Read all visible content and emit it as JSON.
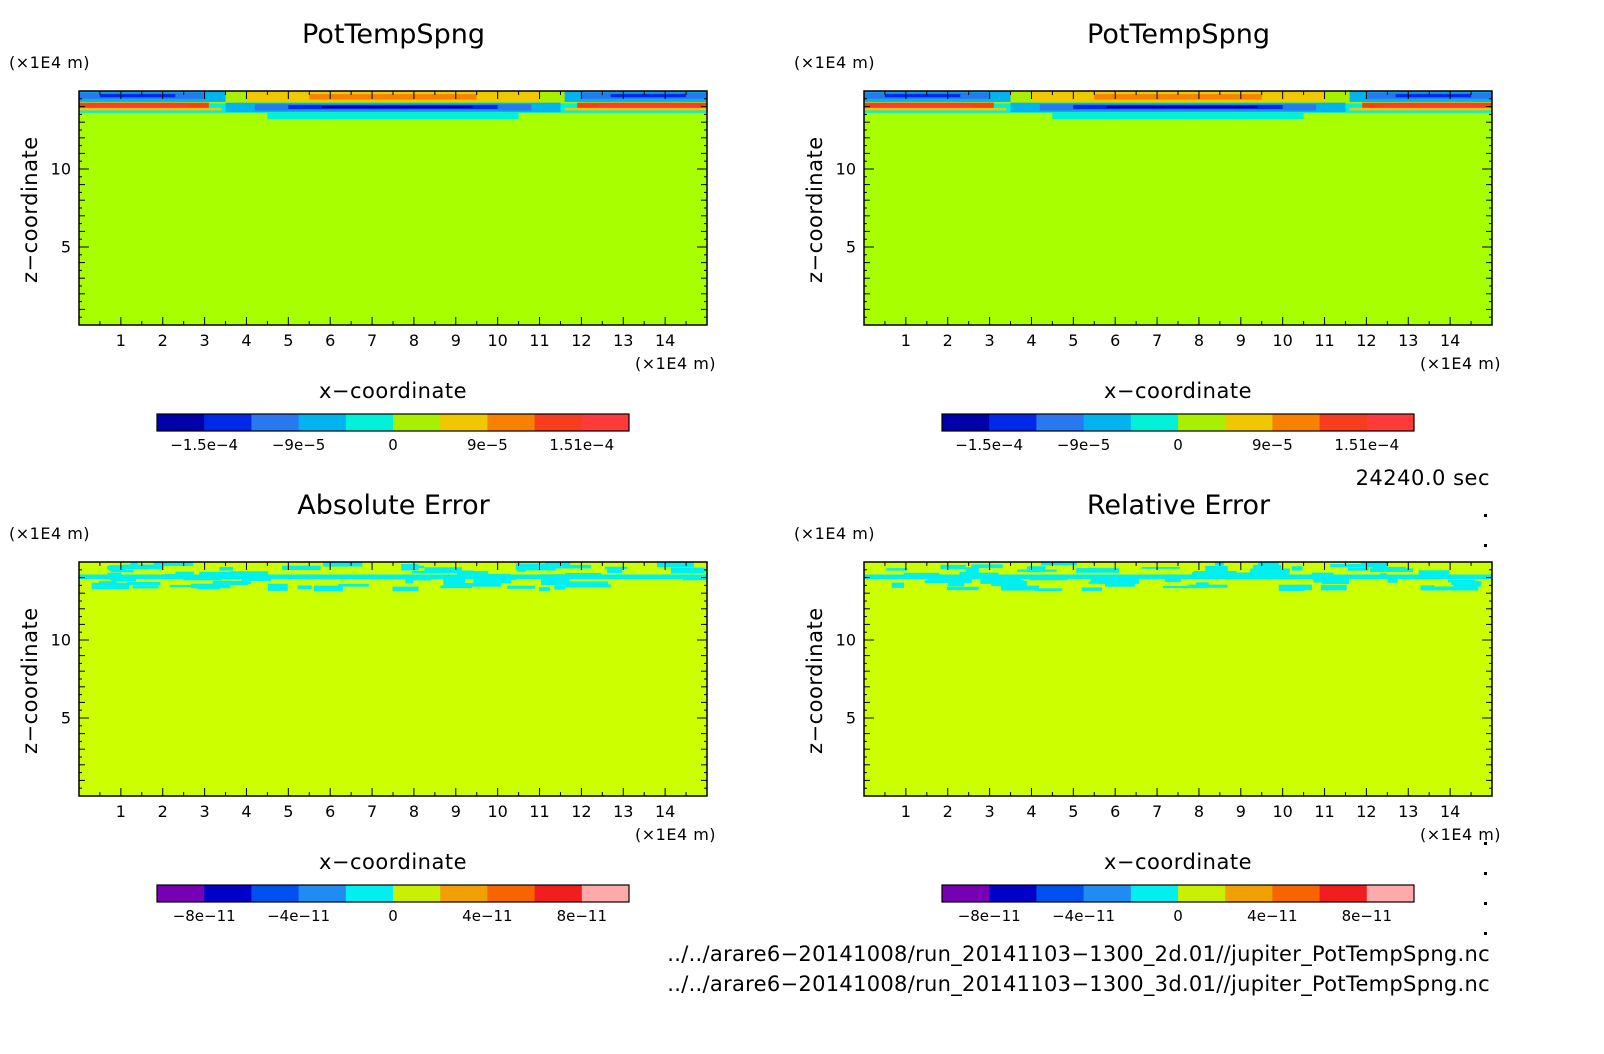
{
  "chart_data": [
    {
      "type": "heatmap",
      "title": "PotTempSpng",
      "xlabel": "x−coordinate",
      "ylabel": "z−coordinate",
      "x_unit": "(×1E4 m)",
      "y_unit": "(×1E4 m)",
      "xlim": [
        0,
        15
      ],
      "ylim": [
        0,
        15
      ],
      "x_ticks": [
        "1",
        "2",
        "3",
        "4",
        "5",
        "6",
        "7",
        "8",
        "9",
        "10",
        "11",
        "12",
        "13",
        "14"
      ],
      "y_ticks": [
        "5",
        "10"
      ],
      "field": "sponge-layer anomaly confined to z > 13 (×1E4 m); near zero elsewhere",
      "colorbar": {
        "tick_labels": [
          "−1.5e−4",
          "−9e−5",
          "0",
          "9e−5",
          "1.51e−4"
        ],
        "colors": [
          "#0000a8",
          "#0028e8",
          "#2878f0",
          "#00b4f0",
          "#00f0d8",
          "#a8f000",
          "#f0c800",
          "#f88200",
          "#f83c1e",
          "#ff3a3a"
        ]
      }
    },
    {
      "type": "heatmap",
      "title": "PotTempSpng",
      "xlabel": "x−coordinate",
      "ylabel": "z−coordinate",
      "x_unit": "(×1E4 m)",
      "y_unit": "(×1E4 m)",
      "xlim": [
        0,
        15
      ],
      "ylim": [
        0,
        15
      ],
      "x_ticks": [
        "1",
        "2",
        "3",
        "4",
        "5",
        "6",
        "7",
        "8",
        "9",
        "10",
        "11",
        "12",
        "13",
        "14"
      ],
      "y_ticks": [
        "5",
        "10"
      ],
      "field": "sponge-layer anomaly confined to z > 13 (×1E4 m); near zero elsewhere",
      "colorbar": {
        "tick_labels": [
          "−1.5e−4",
          "−9e−5",
          "0",
          "9e−5",
          "1.51e−4"
        ],
        "colors": [
          "#0000a8",
          "#0028e8",
          "#2878f0",
          "#00b4f0",
          "#00f0d8",
          "#a8f000",
          "#f0c800",
          "#f88200",
          "#f83c1e",
          "#ff3a3a"
        ]
      }
    },
    {
      "type": "heatmap",
      "title": "Absolute Error",
      "xlabel": "x−coordinate",
      "ylabel": "z−coordinate",
      "x_unit": "(×1E4 m)",
      "y_unit": "(×1E4 m)",
      "xlim": [
        0,
        15
      ],
      "ylim": [
        0,
        15
      ],
      "x_ticks": [
        "1",
        "2",
        "3",
        "4",
        "5",
        "6",
        "7",
        "8",
        "9",
        "10",
        "11",
        "12",
        "13",
        "14"
      ],
      "y_ticks": [
        "5",
        "10"
      ],
      "field": "small negative error patches for z > 13 (×1E4 m); zero elsewhere",
      "colorbar": {
        "tick_labels": [
          "−8e−11",
          "−4e−11",
          "0",
          "4e−11",
          "8e−11"
        ],
        "colors": [
          "#7800b4",
          "#0000c8",
          "#0050f0",
          "#1e8cf0",
          "#00f0f0",
          "#c8f000",
          "#f0a000",
          "#f86400",
          "#f01e1e",
          "#ffaaaa"
        ]
      }
    },
    {
      "type": "heatmap",
      "title": "Relative Error",
      "xlabel": "x−coordinate",
      "ylabel": "z−coordinate",
      "x_unit": "(×1E4 m)",
      "y_unit": "(×1E4 m)",
      "xlim": [
        0,
        15
      ],
      "ylim": [
        0,
        15
      ],
      "x_ticks": [
        "1",
        "2",
        "3",
        "4",
        "5",
        "6",
        "7",
        "8",
        "9",
        "10",
        "11",
        "12",
        "13",
        "14"
      ],
      "y_ticks": [
        "5",
        "10"
      ],
      "field": "small negative error patches for z > 13 (×1E4 m); zero elsewhere",
      "colorbar": {
        "tick_labels": [
          "−8e−11",
          "−4e−11",
          "0",
          "4e−11",
          "8e−11"
        ],
        "colors": [
          "#7800b4",
          "#0000c8",
          "#0050f0",
          "#1e8cf0",
          "#00f0f0",
          "#c8f000",
          "#f0a000",
          "#f86400",
          "#f01e1e",
          "#ffaaaa"
        ]
      }
    }
  ],
  "time_label": "24240.0 sec",
  "file_paths": [
    "../../arare6−20141008/run_20141103−1300_2d.01//jupiter_PotTempSpng.nc",
    "../../arare6−20141008/run_20141103−1300_3d.01//jupiter_PotTempSpng.nc"
  ],
  "colors": {
    "top_background": "#a8ff00",
    "error_background": "#ccff00",
    "error_patch": "#00f0f0"
  }
}
